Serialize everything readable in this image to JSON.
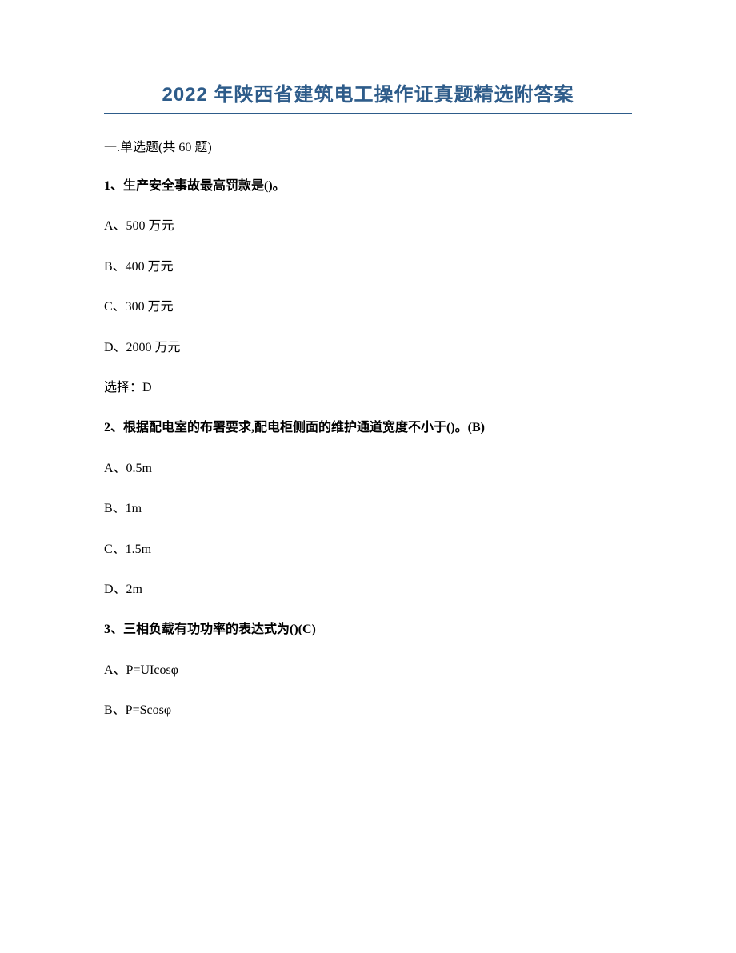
{
  "title": "2022 年陕西省建筑电工操作证真题精选附答案",
  "section_label": "一.单选题(共 60 题)",
  "q1": {
    "stem": "1、生产安全事故最高罚款是()。",
    "a": "A、500 万元",
    "b": "B、400 万元",
    "c": "C、300 万元",
    "d": "D、2000 万元",
    "answer": "选择：D"
  },
  "q2": {
    "stem": "2、根据配电室的布署要求,配电柜侧面的维护通道宽度不小于()。(B)",
    "a": "A、0.5m",
    "b": "B、1m",
    "c": "C、1.5m",
    "d": "D、2m"
  },
  "q3": {
    "stem": "3、三相负载有功功率的表达式为()(C)",
    "a": "A、P=UIcosφ",
    "b": "B、P=Scosφ"
  },
  "colors": {
    "title_color": "#2e5c8a",
    "text_color": "#000000",
    "background": "#ffffff",
    "hr_color": "#2e5c8a"
  },
  "typography": {
    "title_fontsize": 24,
    "body_fontsize": 16,
    "title_weight": "bold"
  }
}
